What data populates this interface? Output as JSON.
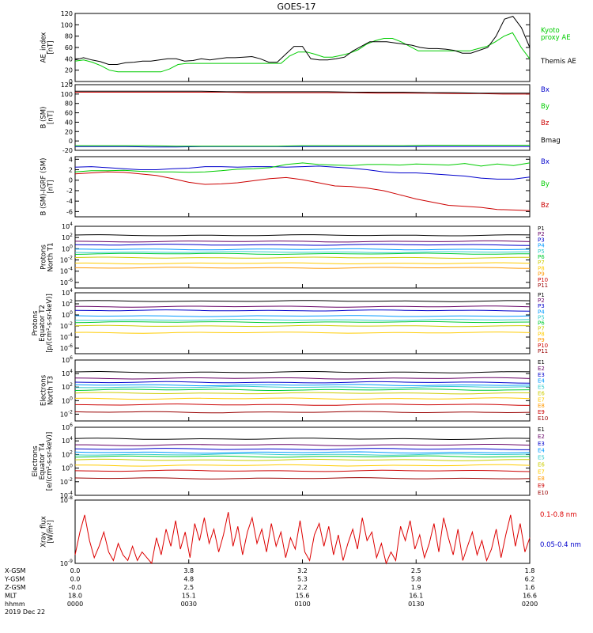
{
  "title": "GOES-17",
  "chart_data": [
    {
      "type": "line",
      "ylabel": [
        "AE_index",
        "[nT]"
      ],
      "ylim": [
        0,
        120
      ],
      "ticks": [
        0,
        20,
        40,
        60,
        80,
        100,
        120
      ],
      "series": [
        {
          "name": "Kyoto proxy AE",
          "color": "#00cc00",
          "values": [
            36,
            38,
            34,
            28,
            20,
            17,
            17,
            17,
            17,
            17,
            17,
            22,
            30,
            32,
            32,
            32,
            32,
            32,
            32,
            32,
            32,
            32,
            32,
            32,
            32,
            45,
            52,
            52,
            48,
            43,
            43,
            46,
            50,
            56,
            66,
            72,
            76,
            76,
            70,
            62,
            54,
            54,
            54,
            54,
            54,
            54,
            54,
            58,
            62,
            70,
            80,
            86,
            60,
            40
          ]
        },
        {
          "name": "Themis AE",
          "color": "#000000",
          "values": [
            38,
            42,
            38,
            35,
            30,
            30,
            33,
            34,
            36,
            36,
            38,
            40,
            40,
            36,
            37,
            40,
            38,
            40,
            42,
            42,
            43,
            44,
            40,
            34,
            34,
            48,
            62,
            62,
            40,
            38,
            38,
            40,
            43,
            54,
            62,
            70,
            70,
            70,
            68,
            66,
            64,
            60,
            58,
            58,
            57,
            55,
            50,
            50,
            55,
            60,
            80,
            110,
            115,
            95,
            60
          ]
        }
      ],
      "legend": [
        {
          "label": "Kyoto",
          "color": "#00cc00"
        },
        {
          "label": "proxy AE",
          "color": "#00cc00"
        },
        {
          "label": "Themis AE",
          "color": "#000000"
        }
      ]
    },
    {
      "type": "line",
      "ylabel": [
        "B (SM)",
        "[nT]"
      ],
      "ylim": [
        -20,
        120
      ],
      "ticks": [
        -20,
        0,
        20,
        40,
        60,
        80,
        100,
        120
      ],
      "tick_labels": [
        "-20",
        "0",
        "20",
        "40",
        "60",
        "80",
        "100",
        "120"
      ],
      "series": [
        {
          "name": "Bx",
          "color": "#0000cc",
          "values": [
            -12,
            -12,
            -12,
            -13,
            -13,
            -12,
            -12,
            -12,
            -12,
            -12,
            -12,
            -12,
            -12,
            -12,
            -12,
            -12,
            -12,
            -12,
            -12
          ]
        },
        {
          "name": "By",
          "color": "#00cc00",
          "values": [
            -10,
            -10,
            -10,
            -10,
            -11,
            -11,
            -11,
            -11,
            -11,
            -10,
            -10,
            -10,
            -10,
            -10,
            -9,
            -9,
            -9,
            -9,
            -9
          ]
        },
        {
          "name": "Bz",
          "color": "#cc0000",
          "values": [
            104,
            104,
            104,
            104,
            104,
            104,
            104,
            103,
            103,
            103,
            103,
            103,
            102,
            102,
            102,
            101,
            101,
            100,
            100
          ]
        },
        {
          "name": "Bmag",
          "color": "#000000",
          "values": [
            106,
            106,
            106,
            106,
            106,
            106,
            105,
            105,
            105,
            105,
            105,
            104,
            104,
            104,
            103,
            103,
            102,
            102,
            102
          ]
        }
      ],
      "legend": [
        {
          "label": "Bx",
          "color": "#0000cc"
        },
        {
          "label": "By",
          "color": "#00cc00"
        },
        {
          "label": "Bz",
          "color": "#cc0000"
        },
        {
          "label": "Bmag",
          "color": "#000000"
        }
      ]
    },
    {
      "type": "line",
      "ylabel": [
        "B (SM)-IGRF (SM)",
        "[nT]"
      ],
      "ylim": [
        -7,
        4.5
      ],
      "ticks": [
        -6,
        -4,
        -2,
        0,
        2,
        4
      ],
      "series": [
        {
          "name": "Bx",
          "color": "#0000cc",
          "values": [
            2.5,
            2.6,
            2.4,
            2.2,
            2.0,
            2.0,
            2.2,
            2.3,
            2.6,
            2.6,
            2.5,
            2.6,
            2.6,
            2.5,
            2.6,
            2.7,
            2.5,
            2.3,
            2.0,
            1.6,
            1.4,
            1.4,
            1.2,
            1.0,
            0.8,
            0.4,
            0.2,
            0.2,
            0.6
          ]
        },
        {
          "name": "By",
          "color": "#00cc00",
          "values": [
            1.6,
            1.8,
            1.8,
            1.9,
            1.7,
            1.6,
            1.6,
            1.5,
            1.6,
            1.8,
            2.1,
            2.2,
            2.4,
            3.0,
            3.3,
            3.0,
            2.9,
            2.8,
            3.0,
            3.0,
            2.9,
            3.1,
            3.0,
            2.9,
            3.2,
            2.7,
            3.1,
            2.8,
            3.3
          ]
        },
        {
          "name": "Bz",
          "color": "#cc0000",
          "values": [
            1.2,
            1.4,
            1.6,
            1.5,
            1.2,
            0.9,
            0.3,
            -0.4,
            -0.8,
            -0.7,
            -0.5,
            -0.1,
            0.3,
            0.5,
            0.1,
            -0.5,
            -1.1,
            -1.2,
            -1.5,
            -2.0,
            -2.8,
            -3.6,
            -4.2,
            -4.8,
            -5.0,
            -5.2,
            -5.6,
            -5.7,
            -5.8
          ]
        }
      ],
      "legend": [
        {
          "label": "Bx",
          "color": "#0000cc"
        },
        {
          "label": "By",
          "color": "#00cc00"
        },
        {
          "label": "Bz",
          "color": "#cc0000"
        }
      ]
    },
    {
      "type": "line",
      "scale": "log",
      "ylabel": [
        "Protons",
        "North T1"
      ],
      "ylim_exp": [
        -7,
        4
      ],
      "tick_exps": [
        -6,
        -4,
        -2,
        0,
        2,
        4
      ],
      "series_levels": [
        2.4,
        1.3,
        0.7,
        -0.1,
        -0.6,
        -0.9,
        -1.6,
        -2.6,
        -3.4
      ],
      "series_colors": [
        "#000000",
        "#660066",
        "#0000cc",
        "#0099ff",
        "#33cccc",
        "#00cc33",
        "#cccc00",
        "#ffcc00",
        "#ff9900"
      ],
      "legend": [
        {
          "label": "P1",
          "color": "#000000"
        },
        {
          "label": "P2",
          "color": "#660066"
        },
        {
          "label": "P3",
          "color": "#0000cc"
        },
        {
          "label": "P4",
          "color": "#0099ff"
        },
        {
          "label": "P5",
          "color": "#33cccc"
        },
        {
          "label": "P6",
          "color": "#00cc33"
        },
        {
          "label": "P7",
          "color": "#cccc00"
        },
        {
          "label": "P8",
          "color": "#ffcc00"
        },
        {
          "label": "P9",
          "color": "#ff9900"
        },
        {
          "label": "P10",
          "color": "#cc0000"
        },
        {
          "label": "P11",
          "color": "#990000"
        }
      ]
    },
    {
      "type": "line",
      "scale": "log",
      "ylabel": [
        "Protons",
        "Equator T2",
        "[p/(cm²-s-sr-keV)]"
      ],
      "ylim_exp": [
        -7,
        4
      ],
      "tick_exps": [
        -6,
        -4,
        -2,
        0,
        2,
        4
      ],
      "series_levels": [
        2.5,
        1.5,
        0.8,
        -0.2,
        -0.9,
        -1.3,
        -2.0,
        -3.2
      ],
      "series_colors": [
        "#000000",
        "#660066",
        "#0000cc",
        "#0099ff",
        "#33cccc",
        "#00cc33",
        "#cccc00",
        "#ffcc00"
      ],
      "legend": [
        {
          "label": "P1",
          "color": "#000000"
        },
        {
          "label": "P2",
          "color": "#660066"
        },
        {
          "label": "P3",
          "color": "#0000cc"
        },
        {
          "label": "P4",
          "color": "#0099ff"
        },
        {
          "label": "P5",
          "color": "#33cccc"
        },
        {
          "label": "P6",
          "color": "#00cc33"
        },
        {
          "label": "P7",
          "color": "#cccc00"
        },
        {
          "label": "P8",
          "color": "#ffcc00"
        },
        {
          "label": "P9",
          "color": "#ff9900"
        },
        {
          "label": "P10",
          "color": "#cc0000"
        },
        {
          "label": "P11",
          "color": "#990000"
        }
      ]
    },
    {
      "type": "line",
      "scale": "log",
      "ylabel": [
        "Electrons",
        "North T3"
      ],
      "ylim_exp": [
        -3,
        6
      ],
      "tick_exps": [
        -2,
        0,
        2,
        4,
        6
      ],
      "series_levels": [
        4.2,
        3.3,
        2.7,
        2.3,
        2.0,
        1.6,
        1.1,
        0.3,
        -0.6,
        -1.7
      ],
      "series_colors": [
        "#000000",
        "#660066",
        "#0000cc",
        "#0099ff",
        "#33cccc",
        "#00cc33",
        "#cccc00",
        "#ffcc00",
        "#cc0000",
        "#990000"
      ],
      "legend": [
        {
          "label": "E1",
          "color": "#000000"
        },
        {
          "label": "E2",
          "color": "#660066"
        },
        {
          "label": "E3",
          "color": "#0000cc"
        },
        {
          "label": "E4",
          "color": "#0099ff"
        },
        {
          "label": "E5",
          "color": "#33cccc"
        },
        {
          "label": "E6",
          "color": "#cccc00"
        },
        {
          "label": "E7",
          "color": "#ffcc00"
        },
        {
          "label": "E8",
          "color": "#ff9900"
        },
        {
          "label": "E9",
          "color": "#cc0000"
        },
        {
          "label": "E10",
          "color": "#990000"
        }
      ]
    },
    {
      "type": "line",
      "scale": "log",
      "ylabel": [
        "Electrons",
        "Equator T4",
        "[e/(cm²-s-sr-keV)]"
      ],
      "ylim_exp": [
        -4,
        6
      ],
      "tick_exps": [
        -4,
        -2,
        0,
        2,
        4,
        6
      ],
      "series_levels": [
        4.3,
        3.4,
        2.8,
        2.3,
        2.0,
        1.7,
        1.2,
        0.4,
        -0.4,
        -1.5
      ],
      "series_colors": [
        "#000000",
        "#660066",
        "#0000cc",
        "#0099ff",
        "#33cccc",
        "#00cc33",
        "#cccc00",
        "#ffcc00",
        "#cc0000",
        "#990000"
      ],
      "legend": [
        {
          "label": "E1",
          "color": "#000000"
        },
        {
          "label": "E2",
          "color": "#660066"
        },
        {
          "label": "E3",
          "color": "#0000cc"
        },
        {
          "label": "E4",
          "color": "#0099ff"
        },
        {
          "label": "E5",
          "color": "#33cccc"
        },
        {
          "label": "E6",
          "color": "#cccc00"
        },
        {
          "label": "E7",
          "color": "#ffcc00"
        },
        {
          "label": "E8",
          "color": "#ff9900"
        },
        {
          "label": "E9",
          "color": "#cc0000"
        },
        {
          "label": "E10",
          "color": "#990000"
        }
      ]
    },
    {
      "type": "line",
      "scale": "log",
      "ylabel": [
        "Xray_flux",
        "[W/m²]"
      ],
      "ylim_exp": [
        -9,
        -8
      ],
      "tick_exps": [
        -9,
        -8
      ],
      "series": [
        {
          "name": "0.1-0.8 nm",
          "color": "#dd0000",
          "values": [
            0.15,
            0.55,
            0.85,
            0.4,
            0.1,
            0.3,
            0.55,
            0.2,
            0.05,
            0.35,
            0.15,
            0.05,
            0.3,
            0.05,
            0.2,
            0.1,
            0.0,
            0.45,
            0.15,
            0.6,
            0.3,
            0.75,
            0.25,
            0.55,
            0.1,
            0.7,
            0.4,
            0.8,
            0.35,
            0.6,
            0.2,
            0.5,
            0.9,
            0.3,
            0.65,
            0.15,
            0.55,
            0.8,
            0.35,
            0.6,
            0.2,
            0.7,
            0.3,
            0.55,
            0.1,
            0.45,
            0.25,
            0.75,
            0.2,
            0.05,
            0.5,
            0.7,
            0.3,
            0.65,
            0.15,
            0.5,
            0.05,
            0.35,
            0.6,
            0.25,
            0.8,
            0.4,
            0.55,
            0.1,
            0.35,
            0.0,
            0.2,
            0.05,
            0.65,
            0.4,
            0.75,
            0.25,
            0.5,
            0.1,
            0.35,
            0.7,
            0.2,
            0.8,
            0.45,
            0.15,
            0.6,
            0.05,
            0.3,
            0.55,
            0.15,
            0.4,
            0.05,
            0.25,
            0.6,
            0.1,
            0.5,
            0.85,
            0.3,
            0.7,
            0.2,
            0.45
          ]
        },
        {
          "name": "0.05-0.4 nm",
          "color": "#0000cc",
          "values": []
        }
      ],
      "legend": [
        {
          "label": "0.1-0.8 nm",
          "color": "#dd0000"
        },
        {
          "label": "0.05-0.4 nm",
          "color": "#0000cc"
        }
      ]
    }
  ],
  "orbit_table": {
    "row_labels": [
      "X-GSM",
      "Y-GSM",
      "Z-GSM",
      "MLT",
      "hhmm"
    ],
    "columns": [
      [
        "0.0",
        "0.0",
        "-0.0",
        "18.0",
        "0000"
      ],
      [
        "3.8",
        "4.8",
        "2.5",
        "15.1",
        "0030"
      ],
      [
        "3.2",
        "5.3",
        "2.2",
        "15.6",
        "0100"
      ],
      [
        "2.5",
        "5.8",
        "1.9",
        "16.1",
        "0130"
      ],
      [
        "1.8",
        "6.2",
        "1.6",
        "16.6",
        "0200"
      ]
    ]
  },
  "date": "2019 Dec 22"
}
